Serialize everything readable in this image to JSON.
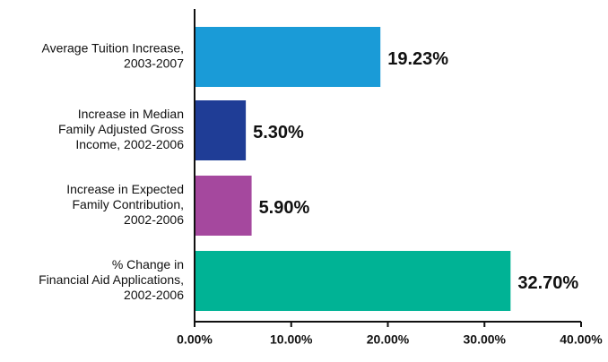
{
  "chart_data": {
    "type": "hbar",
    "categories": [
      [
        "Average Tuition Increase,",
        "2003-2007"
      ],
      [
        "Increase in Median",
        "Family Adjusted Gross",
        "Income, 2002-2006"
      ],
      [
        "Increase in Expected",
        "Family Contribution,",
        "2002-2006"
      ],
      [
        "% Change in",
        "Financial Aid Applications,",
        "2002-2006"
      ]
    ],
    "values": [
      19.23,
      5.3,
      5.9,
      32.7
    ],
    "value_labels": [
      "19.23%",
      "5.30%",
      "5.90%",
      "32.70%"
    ],
    "colors": [
      "#1a9bd7",
      "#1f3d96",
      "#a5489e",
      "#00b395"
    ],
    "xlim": [
      0,
      40
    ],
    "xticks": [
      {
        "value": 0,
        "label": "0.00%"
      },
      {
        "value": 10,
        "label": "10.00%"
      },
      {
        "value": 20,
        "label": "20.00%"
      },
      {
        "value": 30,
        "label": "30.00%"
      },
      {
        "value": 40,
        "label": "40.00%"
      }
    ]
  }
}
